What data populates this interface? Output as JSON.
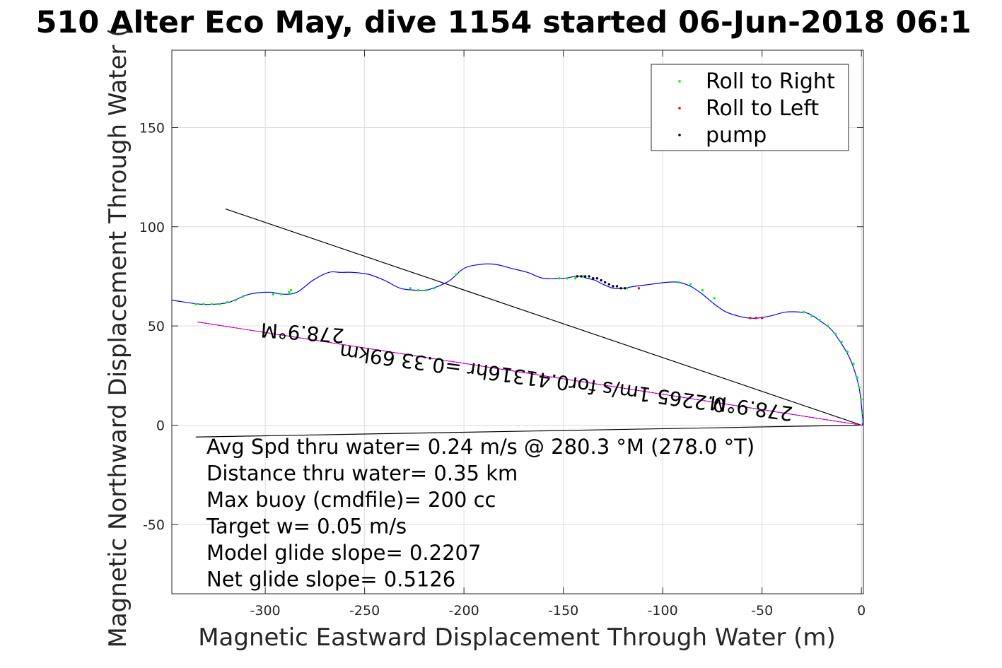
{
  "chart_data": {
    "type": "line",
    "title": "510 Alter Eco May, dive 1154 started 06-Jun-2018 06:1",
    "xlabel": "Magnetic Eastward Displacement Through Water (m)",
    "ylabel": "Magnetic Northward Displacement Through Water (",
    "xlim": [
      -347,
      1
    ],
    "ylim": [
      -85,
      189
    ],
    "xticks": [
      -300,
      -250,
      -200,
      -150,
      -100,
      -50,
      0
    ],
    "yticks": [
      -50,
      0,
      50,
      100,
      150
    ],
    "xtick_labels": [
      "-300",
      "-250",
      "-200",
      "-150",
      "-100",
      "-50",
      "0"
    ],
    "ytick_labels": [
      "-50",
      "0",
      "50",
      "100",
      "150"
    ],
    "grid": true,
    "legend_position": "top-right",
    "legend": [
      {
        "label": "Roll to Right",
        "color": "#00ff00"
      },
      {
        "label": "Roll to Left",
        "color": "#ff0000"
      },
      {
        "label": "pump",
        "color": "#000000"
      }
    ],
    "track": {
      "color": "#0000ff",
      "x": [
        -347,
        -333,
        -325,
        -318,
        -308,
        -298,
        -291,
        -284,
        -276,
        -268,
        -262,
        -256,
        -248,
        -240,
        -232,
        -224,
        -219,
        -213,
        -207,
        -200,
        -192,
        -184,
        -176,
        -168,
        -160,
        -150,
        -144,
        -141,
        -138,
        -134,
        -130,
        -125,
        -120,
        -114,
        -106,
        -98,
        -92,
        -86,
        -80,
        -74,
        -68,
        -62,
        -57,
        -52,
        -46,
        -38,
        -31,
        -26,
        -20,
        -15,
        -10,
        -6,
        -3,
        -1,
        0,
        0.5,
        0.8,
        0.5
      ],
      "y": [
        63,
        61,
        61,
        62,
        66,
        67,
        66,
        67,
        73,
        77,
        77,
        77,
        76,
        73,
        69,
        68,
        68,
        70,
        73,
        79,
        81,
        81,
        79,
        77,
        74,
        74,
        75,
        75,
        74,
        73,
        71,
        69,
        69,
        70,
        71,
        72,
        72,
        70,
        66,
        61,
        57,
        55,
        54,
        54,
        55,
        57,
        57,
        56,
        52,
        48,
        41,
        34,
        26,
        18,
        10,
        5,
        2,
        0
      ]
    },
    "roll_right": {
      "color": "#00ff00",
      "x": [
        -335,
        -331,
        -327,
        -323,
        -319,
        -315,
        -311,
        -296,
        -292,
        -288,
        -287,
        -227,
        -223,
        -219,
        -215,
        -204,
        -152,
        -148,
        -144,
        -140,
        -118,
        -92,
        -86,
        -80,
        -74,
        -29,
        -25,
        -21,
        -17,
        -13,
        -10,
        -7,
        -4,
        -2,
        -1,
        0,
        0.5
      ],
      "y": [
        61,
        61,
        61,
        61,
        62,
        63,
        65,
        66,
        66,
        67,
        68,
        69,
        68,
        68,
        69,
        76,
        74,
        74,
        74,
        75,
        69,
        72,
        71,
        68,
        64,
        57,
        55,
        53,
        50,
        46,
        42,
        37,
        31,
        24,
        19,
        13,
        6
      ]
    },
    "roll_left": {
      "color": "#ff0000",
      "x": [
        -112,
        -56,
        -53,
        -50
      ],
      "y": [
        69,
        54,
        54,
        54
      ]
    },
    "pump": {
      "color": "#000000",
      "x": [
        -143,
        -141,
        -139,
        -137,
        -135,
        -133,
        -131,
        -129,
        -127,
        -125,
        -123,
        -121,
        -119
      ],
      "y": [
        75,
        75,
        75,
        75,
        74,
        74,
        73,
        72,
        71,
        70,
        70,
        69,
        69
      ]
    },
    "reference_lines": [
      {
        "name": "heading-line-upper",
        "color": "#000000",
        "x": [
          -320,
          0
        ],
        "y": [
          109,
          0
        ]
      },
      {
        "name": "heading-line-lower",
        "color": "#000000",
        "x": [
          -335,
          0
        ],
        "y": [
          -6,
          0
        ]
      },
      {
        "name": "current-line",
        "color": "#ff00ff",
        "x": [
          -334,
          0
        ],
        "y": [
          52,
          0
        ]
      }
    ],
    "annotations": [
      {
        "text": "278.9°M",
        "x": -281,
        "y": 50,
        "rotate_deg": 184
      },
      {
        "text": "0.2265 1m/s for0.41316hr =0.33 69km",
        "x": -165,
        "y": 27,
        "rotate_deg": 188
      },
      {
        "text": "278.9°M",
        "x": -55,
        "y": 12,
        "rotate_deg": 188
      }
    ],
    "info_lines": [
      "Avg Spd thru water=  0.24 m/s @ 280.3 °M (278.0 °T)",
      "Distance thru water=  0.35 km",
      "Max buoy (cmdfile)= 200 cc",
      "Target w= 0.05 m/s",
      "Model glide slope= 0.2207",
      "Net glide slope= 0.5126"
    ]
  }
}
